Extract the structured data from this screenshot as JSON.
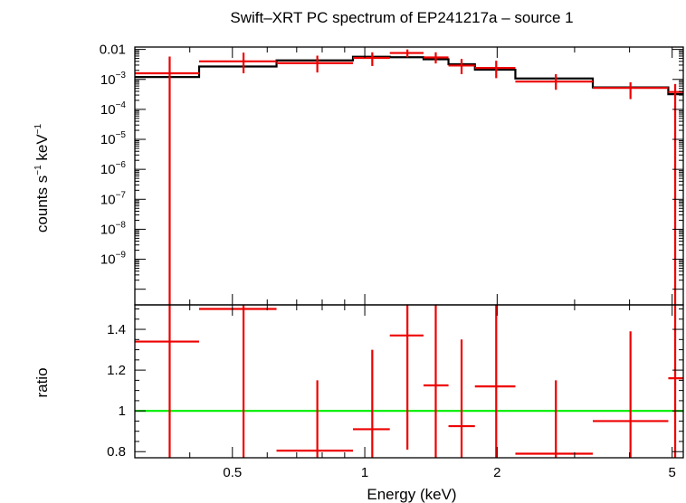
{
  "chart_data": {
    "type": "scatter",
    "title": "Swift–XRT PC spectrum of EP241217a – source 1",
    "xlabel": "Energy (keV)",
    "x_scale": "log",
    "xlim": [
      0.3,
      5.3
    ],
    "x_ticks": [
      {
        "value": 0.5,
        "label": "0.5"
      },
      {
        "value": 1,
        "label": "1"
      },
      {
        "value": 2,
        "label": "2"
      },
      {
        "value": 5,
        "label": "5"
      }
    ],
    "top_panel": {
      "ylabel_main": "counts s",
      "ylabel_exp1": "−1",
      "ylabel_mid": " keV",
      "ylabel_exp2": "−1",
      "y_scale": "log",
      "ylim": [
        3e-11,
        0.012
      ],
      "y_ticks": [
        {
          "value": 0.01,
          "base": "0.01",
          "exp": ""
        },
        {
          "value": 0.001,
          "base": "10",
          "exp": "−3"
        },
        {
          "value": 0.0001,
          "base": "10",
          "exp": "−4"
        },
        {
          "value": 1e-05,
          "base": "10",
          "exp": "−5"
        },
        {
          "value": 1e-06,
          "base": "10",
          "exp": "−6"
        },
        {
          "value": 1e-07,
          "base": "10",
          "exp": "−7"
        },
        {
          "value": 1e-08,
          "base": "10",
          "exp": "−8"
        },
        {
          "value": 1e-09,
          "base": "10",
          "exp": "−9"
        }
      ],
      "data": [
        {
          "x_lo": 0.3,
          "x_hi": 0.42,
          "x": 0.36,
          "y": 0.0016,
          "y_lo": 3e-11,
          "y_hi": 0.0058
        },
        {
          "x_lo": 0.42,
          "x_hi": 0.63,
          "x": 0.53,
          "y": 0.004,
          "y_lo": 0.0016,
          "y_hi": 0.0078
        },
        {
          "x_lo": 0.63,
          "x_hi": 0.94,
          "x": 0.78,
          "y": 0.0035,
          "y_lo": 0.0017,
          "y_hi": 0.0062
        },
        {
          "x_lo": 0.94,
          "x_hi": 1.14,
          "x": 1.04,
          "y": 0.0052,
          "y_lo": 0.0028,
          "y_hi": 0.008
        },
        {
          "x_lo": 1.14,
          "x_hi": 1.36,
          "x": 1.25,
          "y": 0.0076,
          "y_lo": 0.0055,
          "y_hi": 0.01
        },
        {
          "x_lo": 1.36,
          "x_hi": 1.55,
          "x": 1.45,
          "y": 0.0054,
          "y_lo": 0.0034,
          "y_hi": 0.008
        },
        {
          "x_lo": 1.55,
          "x_hi": 1.78,
          "x": 1.66,
          "y": 0.0029,
          "y_lo": 0.0015,
          "y_hi": 0.0048
        },
        {
          "x_lo": 1.78,
          "x_hi": 2.2,
          "x": 1.99,
          "y": 0.0024,
          "y_lo": 0.0011,
          "y_hi": 0.0042
        },
        {
          "x_lo": 2.2,
          "x_hi": 3.3,
          "x": 2.72,
          "y": 0.00085,
          "y_lo": 0.00045,
          "y_hi": 0.0015
        },
        {
          "x_lo": 3.3,
          "x_hi": 4.9,
          "x": 4.02,
          "y": 0.00052,
          "y_lo": 0.00022,
          "y_hi": 0.0008
        },
        {
          "x_lo": 4.9,
          "x_hi": 5.3,
          "x": 5.08,
          "y": 0.00038,
          "y_lo": 3e-11,
          "y_hi": 0.0007
        }
      ],
      "model": [
        {
          "x_lo": 0.3,
          "x_hi": 0.42,
          "y": 0.0012
        },
        {
          "x_lo": 0.42,
          "x_hi": 0.63,
          "y": 0.0027
        },
        {
          "x_lo": 0.63,
          "x_hi": 0.94,
          "y": 0.0043
        },
        {
          "x_lo": 0.94,
          "x_hi": 1.14,
          "y": 0.0057
        },
        {
          "x_lo": 1.14,
          "x_hi": 1.36,
          "y": 0.0055
        },
        {
          "x_lo": 1.36,
          "x_hi": 1.55,
          "y": 0.0047
        },
        {
          "x_lo": 1.55,
          "x_hi": 1.78,
          "y": 0.0032
        },
        {
          "x_lo": 1.78,
          "x_hi": 2.2,
          "y": 0.0021
        },
        {
          "x_lo": 2.2,
          "x_hi": 3.3,
          "y": 0.00107
        },
        {
          "x_lo": 3.3,
          "x_hi": 4.9,
          "y": 0.00054
        },
        {
          "x_lo": 4.9,
          "x_hi": 5.3,
          "y": 0.00032
        }
      ]
    },
    "bottom_panel": {
      "ylabel": "ratio",
      "ylim": [
        0.77,
        1.52
      ],
      "y_ticks": [
        {
          "value": 0.8,
          "label": "0.8"
        },
        {
          "value": 1,
          "label": "1"
        },
        {
          "value": 1.2,
          "label": "1.2"
        },
        {
          "value": 1.4,
          "label": "1.4"
        }
      ],
      "reference": 1,
      "data": [
        {
          "x_lo": 0.3,
          "x_hi": 0.42,
          "x": 0.36,
          "y": 1.34,
          "y_lo": 0.77,
          "y_hi": 1.52
        },
        {
          "x_lo": 0.42,
          "x_hi": 0.63,
          "x": 0.53,
          "y": 1.5,
          "y_lo": 0.77,
          "y_hi": 1.52
        },
        {
          "x_lo": 0.63,
          "x_hi": 0.94,
          "x": 0.78,
          "y": 0.805,
          "y_lo": 0.77,
          "y_hi": 1.15
        },
        {
          "x_lo": 0.94,
          "x_hi": 1.14,
          "x": 1.04,
          "y": 0.91,
          "y_lo": 0.77,
          "y_hi": 1.3
        },
        {
          "x_lo": 1.14,
          "x_hi": 1.36,
          "x": 1.25,
          "y": 1.37,
          "y_lo": 0.81,
          "y_hi": 1.52
        },
        {
          "x_lo": 1.36,
          "x_hi": 1.55,
          "x": 1.45,
          "y": 1.125,
          "y_lo": 0.77,
          "y_hi": 1.52
        },
        {
          "x_lo": 1.55,
          "x_hi": 1.78,
          "x": 1.66,
          "y": 0.925,
          "y_lo": 0.77,
          "y_hi": 1.35
        },
        {
          "x_lo": 1.78,
          "x_hi": 2.2,
          "x": 1.99,
          "y": 1.12,
          "y_lo": 0.77,
          "y_hi": 1.52
        },
        {
          "x_lo": 2.2,
          "x_hi": 3.3,
          "x": 2.72,
          "y": 0.79,
          "y_lo": 0.77,
          "y_hi": 1.15
        },
        {
          "x_lo": 3.3,
          "x_hi": 4.9,
          "x": 4.02,
          "y": 0.95,
          "y_lo": 0.77,
          "y_hi": 1.39
        },
        {
          "x_lo": 4.9,
          "x_hi": 5.3,
          "x": 5.08,
          "y": 1.16,
          "y_lo": 0.77,
          "y_hi": 1.52
        }
      ]
    },
    "colors": {
      "data": "#ee0000",
      "model": "#000000",
      "reference": "#00ee00",
      "axes": "#000000"
    }
  }
}
